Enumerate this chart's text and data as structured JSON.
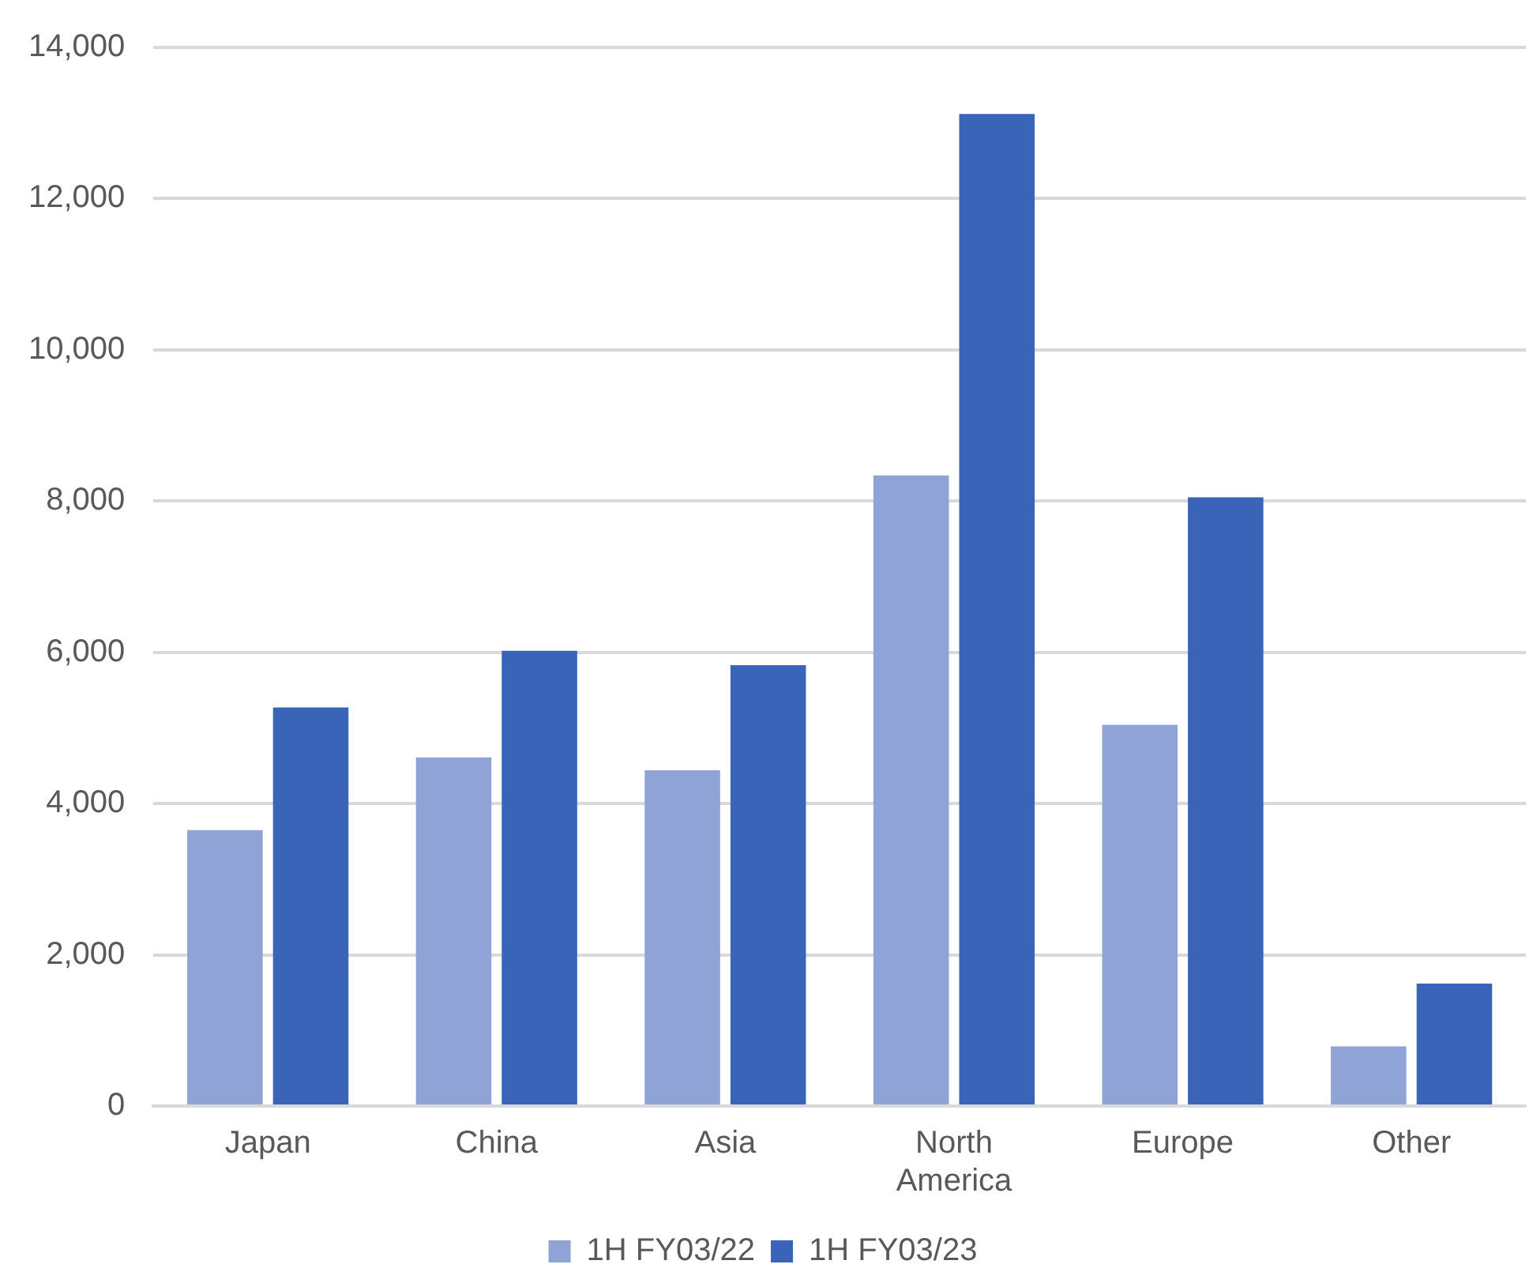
{
  "chart_data": {
    "type": "bar",
    "categories": [
      "Japan",
      "China",
      "Asia",
      "North America",
      "Europe",
      "Other"
    ],
    "series": [
      {
        "name": "1H FY03/22",
        "color": "#8fa3d6",
        "values": [
          3650,
          4610,
          4440,
          8340,
          5040,
          790
        ]
      },
      {
        "name": "1H FY03/23",
        "color": "#3a64b8",
        "values": [
          5270,
          6020,
          5830,
          13120,
          8050,
          1620
        ]
      }
    ],
    "ylim": [
      0,
      14000
    ],
    "yticks": [
      {
        "value": 0,
        "label": "0"
      },
      {
        "value": 2000,
        "label": "2,000"
      },
      {
        "value": 4000,
        "label": "4,000"
      },
      {
        "value": 6000,
        "label": "6,000"
      },
      {
        "value": 8000,
        "label": "8,000"
      },
      {
        "value": 10000,
        "label": "10,000"
      },
      {
        "value": 12000,
        "label": "12,000"
      },
      {
        "value": 14000,
        "label": "14,000"
      }
    ],
    "grid": "y",
    "legend": "bottom"
  }
}
